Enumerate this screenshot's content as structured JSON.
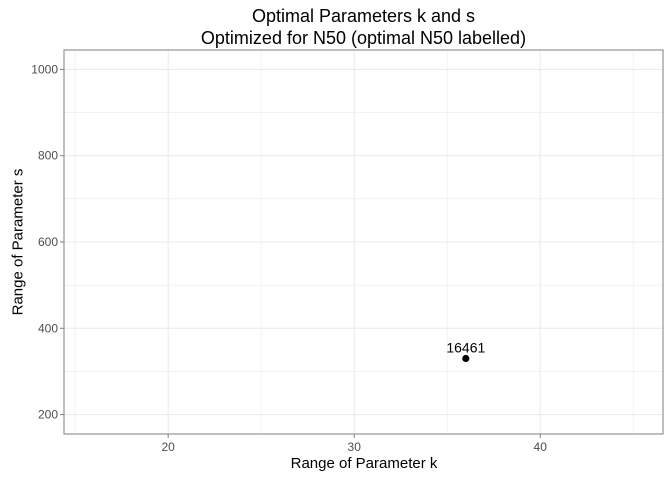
{
  "chart_data": {
    "type": "scatter",
    "title": "Optimal Parameters k and s",
    "subtitle": "Optimized for N50 (optimal N50 labelled)",
    "xlabel": "Range of Parameter k",
    "ylabel": "Range of Parameter s",
    "xlim": [
      14.4,
      46.6
    ],
    "ylim": [
      155,
      1045
    ],
    "xticks": [
      20,
      30,
      40
    ],
    "yticks": [
      200,
      400,
      600,
      800,
      1000
    ],
    "xminor": [
      15,
      25,
      35,
      45
    ],
    "yminor": [
      300,
      500,
      700,
      900
    ],
    "grid": true,
    "colors": {
      "point": "#000000",
      "grid": "#ebebeb",
      "panel_border": "#7f7f7f",
      "text": "#000000",
      "tick_text": "#4d4d4d"
    },
    "points": [
      {
        "x": 36,
        "y": 330,
        "label": "16461"
      }
    ]
  }
}
